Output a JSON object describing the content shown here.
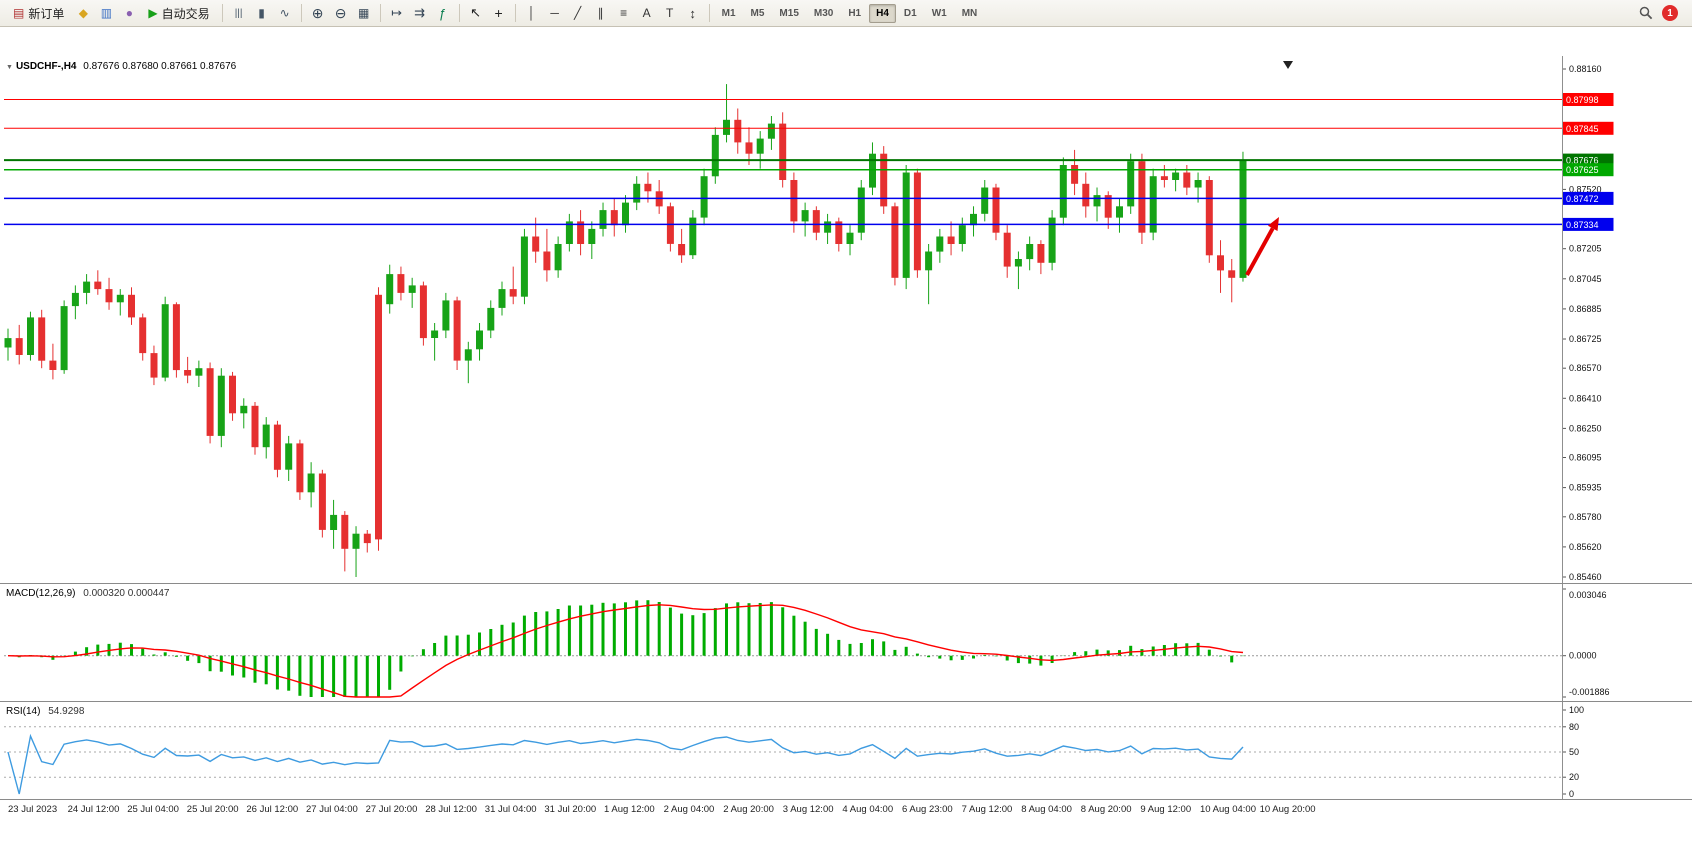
{
  "icons": {
    "caret_down": "▼"
  },
  "toolbar": {
    "items": [
      {
        "kind": "button",
        "name": "new-order-button",
        "icon": "new-order-icon",
        "glyph": "▤",
        "color": "#b03030",
        "label": "新订单"
      },
      {
        "kind": "button",
        "name": "terminal-icon-button",
        "icon": "terminal-icon",
        "glyph": "◆",
        "color": "#d9a520"
      },
      {
        "kind": "button",
        "name": "charts-icon-button",
        "icon": "charts-icon",
        "glyph": "▥",
        "color": "#3b6fc4"
      },
      {
        "kind": "button",
        "name": "metaeditor-icon-button",
        "icon": "metaeditor-icon",
        "glyph": "●",
        "color": "#8a5fb0"
      },
      {
        "kind": "button",
        "name": "autotrading-button",
        "icon": "autotrading-icon",
        "glyph": "▶",
        "color": "#18a018",
        "label": "自动交易"
      },
      {
        "kind": "sep"
      },
      {
        "kind": "button",
        "name": "bar-chart-button",
        "icon": "bar-chart-icon",
        "glyph": "|||",
        "color": "#445566",
        "size": 10
      },
      {
        "kind": "button",
        "name": "candlestick-chart-button",
        "icon": "candlestick-icon",
        "glyph": "▮",
        "color": "#445566"
      },
      {
        "kind": "button",
        "name": "line-chart-button",
        "icon": "line-chart-icon",
        "glyph": "∿",
        "color": "#445566"
      },
      {
        "kind": "sep"
      },
      {
        "kind": "button",
        "name": "zoom-in-button",
        "icon": "zoom-in-icon",
        "glyph": "⊕",
        "color": "#334455",
        "size": 14
      },
      {
        "kind": "button",
        "name": "zoom-out-button",
        "icon": "zoom-out-icon",
        "glyph": "⊖",
        "color": "#334455",
        "size": 14
      },
      {
        "kind": "button",
        "name": "tile-windows-button",
        "icon": "tile-windows-icon",
        "glyph": "▦",
        "color": "#334455"
      },
      {
        "kind": "sep"
      },
      {
        "kind": "button",
        "name": "auto-scroll-button",
        "icon": "auto-scroll-icon",
        "glyph": "↦",
        "color": "#334455",
        "size": 13
      },
      {
        "kind": "button",
        "name": "chart-shift-button",
        "icon": "chart-shift-icon",
        "glyph": "⇉",
        "color": "#334455",
        "size": 13
      },
      {
        "kind": "button",
        "name": "indicators-button",
        "icon": "indicators-icon",
        "glyph": "ƒ",
        "color": "#0a7d4f",
        "size": 13
      },
      {
        "kind": "sep"
      },
      {
        "kind": "button",
        "name": "cursor-button",
        "icon": "cursor-icon",
        "glyph": "↖",
        "color": "#222222",
        "size": 13
      },
      {
        "kind": "button",
        "name": "crosshair-button",
        "icon": "crosshair-icon",
        "glyph": "+",
        "color": "#222222",
        "size": 14
      },
      {
        "kind": "sep"
      },
      {
        "kind": "button",
        "name": "vertical-line-button",
        "icon": "vertical-line-icon",
        "glyph": "│",
        "color": "#333333"
      },
      {
        "kind": "button",
        "name": "horizontal-line-button",
        "icon": "horizontal-line-icon",
        "glyph": "─",
        "color": "#333333"
      },
      {
        "kind": "button",
        "name": "trendline-button",
        "icon": "trendline-icon",
        "glyph": "╱",
        "color": "#333333"
      },
      {
        "kind": "button",
        "name": "channel-button",
        "icon": "channel-icon",
        "glyph": "∥",
        "color": "#333333"
      },
      {
        "kind": "button",
        "name": "fibonacci-button",
        "icon": "fibonacci-icon",
        "glyph": "≡",
        "color": "#333333"
      },
      {
        "kind": "button",
        "name": "text-button",
        "icon": "text-icon",
        "glyph": "A",
        "color": "#333333"
      },
      {
        "kind": "button",
        "name": "label-button",
        "icon": "label-icon",
        "glyph": "T",
        "color": "#333333"
      },
      {
        "kind": "button",
        "name": "arrows-button",
        "icon": "arrows-icon",
        "glyph": "↕",
        "color": "#333333",
        "size": 13
      },
      {
        "kind": "sep"
      },
      {
        "kind": "tfgroup",
        "list": [
          "M1",
          "M5",
          "M15",
          "M30",
          "H1",
          "H4",
          "D1",
          "W1",
          "MN"
        ],
        "active": "H4"
      },
      {
        "kind": "spacer"
      },
      {
        "kind": "search",
        "name": "search-button"
      },
      {
        "kind": "badge",
        "text": "1"
      }
    ]
  },
  "chart_data": {
    "type": "candlestick",
    "symbol": "USDCHF-",
    "timeframe": "H4",
    "header_left": "USDCHF-,H4",
    "header_ohlc": "0.87676 0.87680 0.87661 0.87676",
    "ohlc_current": {
      "open": "0.87676",
      "high": "0.87680",
      "low": "0.87661",
      "close": "0.87676"
    },
    "bull_color": "#17a317",
    "bear_color": "#e53030",
    "y_axis": {
      "min": 0.8546,
      "max": 0.8816,
      "tick_labels": [
        0.8816,
        0.8752,
        0.87205,
        0.87045,
        0.86885,
        0.86725,
        0.8657,
        0.8641,
        0.8625,
        0.86095,
        0.85935,
        0.8578,
        0.8562,
        0.8546
      ]
    },
    "price_lines": [
      {
        "price": 0.87998,
        "label": "0.87998",
        "color": "#ff0000",
        "width": 1
      },
      {
        "price": 0.87845,
        "label": "0.87845",
        "color": "#ff0000",
        "width": 1
      },
      {
        "price": 0.87676,
        "label": "0.87676",
        "color": "#007500",
        "width": 2
      },
      {
        "price": 0.87625,
        "label": "0.87625",
        "color": "#00a800",
        "width": 1.5
      },
      {
        "price": 0.87472,
        "label": "0.87472",
        "color": "#0000ee",
        "width": 1.5
      },
      {
        "price": 0.87334,
        "label": "0.87334",
        "color": "#0000ee",
        "width": 1.5
      }
    ],
    "x_labels": [
      "23 Jul 2023",
      "24 Jul 12:00",
      "25 Jul 04:00",
      "25 Jul 20:00",
      "26 Jul 12:00",
      "27 Jul 04:00",
      "27 Jul 20:00",
      "28 Jul 12:00",
      "31 Jul 04:00",
      "31 Jul 20:00",
      "1 Aug 12:00",
      "2 Aug 04:00",
      "2 Aug 20:00",
      "3 Aug 12:00",
      "4 Aug 04:00",
      "6 Aug 23:00",
      "7 Aug 12:00",
      "8 Aug 04:00",
      "8 Aug 20:00",
      "9 Aug 12:00",
      "10 Aug 04:00",
      "10 Aug 20:00"
    ],
    "candles": [
      [
        0.8668,
        0.8678,
        0.8661,
        0.8673
      ],
      [
        0.8673,
        0.868,
        0.8659,
        0.8664
      ],
      [
        0.8664,
        0.8687,
        0.8661,
        0.8684
      ],
      [
        0.8684,
        0.8688,
        0.8657,
        0.8661
      ],
      [
        0.8661,
        0.867,
        0.8651,
        0.8656
      ],
      [
        0.8656,
        0.8693,
        0.8654,
        0.869
      ],
      [
        0.869,
        0.8701,
        0.8683,
        0.8697
      ],
      [
        0.8697,
        0.8707,
        0.8691,
        0.8703
      ],
      [
        0.8703,
        0.8709,
        0.8696,
        0.8699
      ],
      [
        0.8699,
        0.8705,
        0.8688,
        0.8692
      ],
      [
        0.8692,
        0.8699,
        0.8685,
        0.8696
      ],
      [
        0.8696,
        0.87,
        0.868,
        0.8684
      ],
      [
        0.8684,
        0.8686,
        0.8661,
        0.8665
      ],
      [
        0.8665,
        0.8669,
        0.8648,
        0.8652
      ],
      [
        0.8652,
        0.8695,
        0.865,
        0.8691
      ],
      [
        0.8691,
        0.8692,
        0.8652,
        0.8656
      ],
      [
        0.8656,
        0.8663,
        0.8649,
        0.8653
      ],
      [
        0.8653,
        0.8661,
        0.8647,
        0.8657
      ],
      [
        0.8657,
        0.866,
        0.8617,
        0.8621
      ],
      [
        0.8621,
        0.8657,
        0.8615,
        0.8653
      ],
      [
        0.8653,
        0.8655,
        0.8629,
        0.8633
      ],
      [
        0.8633,
        0.8641,
        0.8625,
        0.8637
      ],
      [
        0.8637,
        0.8639,
        0.8611,
        0.8615
      ],
      [
        0.8615,
        0.8631,
        0.8609,
        0.8627
      ],
      [
        0.8627,
        0.8629,
        0.8599,
        0.8603
      ],
      [
        0.8603,
        0.8621,
        0.8597,
        0.8617
      ],
      [
        0.8617,
        0.8619,
        0.8587,
        0.8591
      ],
      [
        0.8591,
        0.8607,
        0.8583,
        0.8601
      ],
      [
        0.8601,
        0.8603,
        0.8567,
        0.8571
      ],
      [
        0.8571,
        0.8587,
        0.8561,
        0.8579
      ],
      [
        0.8579,
        0.8581,
        0.8549,
        0.8561
      ],
      [
        0.8561,
        0.8573,
        0.8546,
        0.8569
      ],
      [
        0.8569,
        0.8571,
        0.8559,
        0.8564
      ],
      [
        0.8696,
        0.87,
        0.856,
        0.8566
      ],
      [
        0.8691,
        0.8712,
        0.8686,
        0.8707
      ],
      [
        0.8707,
        0.8711,
        0.8693,
        0.8697
      ],
      [
        0.8697,
        0.8705,
        0.8689,
        0.8701
      ],
      [
        0.8701,
        0.8703,
        0.8669,
        0.8673
      ],
      [
        0.8673,
        0.8681,
        0.8661,
        0.8677
      ],
      [
        0.8677,
        0.8697,
        0.8673,
        0.8693
      ],
      [
        0.8693,
        0.8695,
        0.8656,
        0.8661
      ],
      [
        0.8661,
        0.8671,
        0.8649,
        0.8667
      ],
      [
        0.8667,
        0.8681,
        0.8661,
        0.8677
      ],
      [
        0.8677,
        0.8693,
        0.8673,
        0.8689
      ],
      [
        0.8689,
        0.8703,
        0.8685,
        0.8699
      ],
      [
        0.8699,
        0.8711,
        0.8691,
        0.8695
      ],
      [
        0.8695,
        0.8731,
        0.8691,
        0.8727
      ],
      [
        0.8727,
        0.8737,
        0.8713,
        0.8719
      ],
      [
        0.8719,
        0.8731,
        0.8703,
        0.8709
      ],
      [
        0.8709,
        0.8727,
        0.8705,
        0.8723
      ],
      [
        0.8723,
        0.8739,
        0.8719,
        0.8735
      ],
      [
        0.8735,
        0.8741,
        0.8717,
        0.8723
      ],
      [
        0.8723,
        0.8735,
        0.8715,
        0.8731
      ],
      [
        0.8731,
        0.8745,
        0.8727,
        0.8741
      ],
      [
        0.8741,
        0.8747,
        0.8727,
        0.8733
      ],
      [
        0.8733,
        0.8749,
        0.8729,
        0.8745
      ],
      [
        0.8745,
        0.8759,
        0.8741,
        0.8755
      ],
      [
        0.8755,
        0.8761,
        0.8745,
        0.8751
      ],
      [
        0.8751,
        0.8757,
        0.8739,
        0.8743
      ],
      [
        0.8743,
        0.8745,
        0.8719,
        0.8723
      ],
      [
        0.8723,
        0.8731,
        0.8713,
        0.8717
      ],
      [
        0.8717,
        0.8741,
        0.8715,
        0.8737
      ],
      [
        0.8737,
        0.8763,
        0.8733,
        0.8759
      ],
      [
        0.8759,
        0.8785,
        0.8755,
        0.8781
      ],
      [
        0.8781,
        0.8808,
        0.8777,
        0.8789
      ],
      [
        0.8789,
        0.8795,
        0.8771,
        0.8777
      ],
      [
        0.8777,
        0.8785,
        0.8765,
        0.8771
      ],
      [
        0.8771,
        0.8783,
        0.8763,
        0.8779
      ],
      [
        0.8779,
        0.8791,
        0.8773,
        0.8787
      ],
      [
        0.8787,
        0.8793,
        0.8753,
        0.8757
      ],
      [
        0.8757,
        0.8761,
        0.8729,
        0.8735
      ],
      [
        0.8735,
        0.8745,
        0.8727,
        0.8741
      ],
      [
        0.8741,
        0.8743,
        0.8725,
        0.8729
      ],
      [
        0.8729,
        0.8739,
        0.8723,
        0.8735
      ],
      [
        0.8735,
        0.8737,
        0.8719,
        0.8723
      ],
      [
        0.8723,
        0.8733,
        0.8717,
        0.8729
      ],
      [
        0.8729,
        0.8757,
        0.8725,
        0.8753
      ],
      [
        0.8753,
        0.8777,
        0.8749,
        0.8771
      ],
      [
        0.8771,
        0.8775,
        0.8739,
        0.8743
      ],
      [
        0.8743,
        0.8745,
        0.8701,
        0.8705
      ],
      [
        0.8705,
        0.8765,
        0.8699,
        0.8761
      ],
      [
        0.8761,
        0.8763,
        0.8705,
        0.8709
      ],
      [
        0.8709,
        0.8723,
        0.8691,
        0.8719
      ],
      [
        0.8719,
        0.8731,
        0.8713,
        0.8727
      ],
      [
        0.8727,
        0.8735,
        0.8717,
        0.8723
      ],
      [
        0.8723,
        0.8737,
        0.8719,
        0.8733
      ],
      [
        0.8733,
        0.8743,
        0.8727,
        0.8739
      ],
      [
        0.8739,
        0.8757,
        0.8735,
        0.8753
      ],
      [
        0.8753,
        0.8755,
        0.8725,
        0.8729
      ],
      [
        0.8729,
        0.8733,
        0.8705,
        0.8711
      ],
      [
        0.8711,
        0.8719,
        0.8699,
        0.8715
      ],
      [
        0.8715,
        0.8727,
        0.8709,
        0.8723
      ],
      [
        0.8723,
        0.8725,
        0.8707,
        0.8713
      ],
      [
        0.8713,
        0.8741,
        0.8709,
        0.8737
      ],
      [
        0.8737,
        0.8769,
        0.8733,
        0.8765
      ],
      [
        0.8765,
        0.8773,
        0.8749,
        0.8755
      ],
      [
        0.8755,
        0.8761,
        0.8737,
        0.8743
      ],
      [
        0.8743,
        0.8753,
        0.8735,
        0.8749
      ],
      [
        0.8749,
        0.8751,
        0.8731,
        0.8737
      ],
      [
        0.8737,
        0.8747,
        0.8729,
        0.8743
      ],
      [
        0.8743,
        0.8771,
        0.8739,
        0.8767
      ],
      [
        0.8767,
        0.8771,
        0.8723,
        0.8729
      ],
      [
        0.8729,
        0.8763,
        0.8725,
        0.8759
      ],
      [
        0.8759,
        0.8765,
        0.8753,
        0.8757
      ],
      [
        0.8757,
        0.8763,
        0.8751,
        0.8761
      ],
      [
        0.8761,
        0.8765,
        0.8749,
        0.8753
      ],
      [
        0.8753,
        0.8761,
        0.8745,
        0.8757
      ],
      [
        0.8757,
        0.8759,
        0.8713,
        0.8717
      ],
      [
        0.8717,
        0.8725,
        0.8697,
        0.8709
      ],
      [
        0.8709,
        0.8715,
        0.8692,
        0.8705
      ],
      [
        0.8705,
        0.8772,
        0.8703,
        0.87676
      ]
    ],
    "annotation_arrow": {
      "from": [
        1247,
        247
      ],
      "to": [
        1279,
        189
      ],
      "color": "#e30000"
    },
    "indicators": {
      "macd": {
        "label": "MACD(12,26,9)",
        "values": "0.000320 0.000447",
        "params": [
          12,
          26,
          9
        ],
        "axis_labels": [
          "0.003046",
          "0.0000",
          "-0.001886"
        ],
        "range": [
          -0.001886,
          0.003046
        ],
        "histogram_color": "#00ac00",
        "signal_color": "#ff0000"
      },
      "rsi": {
        "label": "RSI(14)",
        "value": "54.9298",
        "period": 14,
        "levels": [
          80,
          50,
          20
        ],
        "axis_labels": [
          "100",
          "80",
          "50",
          "20",
          "0"
        ],
        "range": [
          0,
          100
        ],
        "line_color": "#3e9be0"
      }
    }
  }
}
